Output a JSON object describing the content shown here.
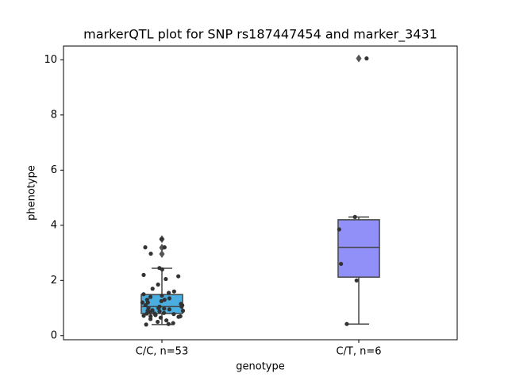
{
  "chart_data": {
    "type": "box",
    "title": "markerQTL plot for SNP rs187447454 and marker_3431",
    "xlabel": "genotype",
    "ylabel": "phenotype",
    "categories": [
      "C/C, n=53",
      "C/T, n=6"
    ],
    "ylim": [
      -0.15,
      10.5
    ],
    "yticks": [
      0,
      2,
      4,
      6,
      8,
      10
    ],
    "boxes": [
      {
        "color": "#4aaee0",
        "whislo": 0.4,
        "q1": 0.8,
        "med": 1.05,
        "q3": 1.49,
        "whishi": 2.44,
        "fliers": [
          2.96,
          3.19,
          3.5
        ]
      },
      {
        "color": "#9090f8",
        "whislo": 0.42,
        "q1": 2.12,
        "med": 3.2,
        "q3": 4.2,
        "whishi": 4.3,
        "fliers": [
          10.05
        ]
      }
    ],
    "points_color": "#333333",
    "points": [
      [
        3.5,
        3.2,
        3.2,
        2.97,
        2.45,
        2.4,
        2.2,
        2.15,
        2.05,
        1.85,
        1.7,
        1.6,
        1.55,
        1.5,
        1.45,
        1.4,
        1.35,
        1.3,
        1.3,
        1.25,
        1.2,
        1.2,
        1.15,
        1.1,
        1.1,
        1.05,
        1.05,
        1.0,
        1.0,
        0.98,
        0.95,
        0.92,
        0.9,
        0.9,
        0.88,
        0.85,
        0.82,
        0.8,
        0.8,
        0.78,
        0.75,
        0.75,
        0.72,
        0.7,
        0.7,
        0.68,
        0.65,
        0.6,
        0.55,
        0.5,
        0.45,
        0.42,
        0.4
      ],
      [
        0.42,
        2.0,
        2.6,
        3.85,
        4.3,
        10.05
      ]
    ]
  }
}
